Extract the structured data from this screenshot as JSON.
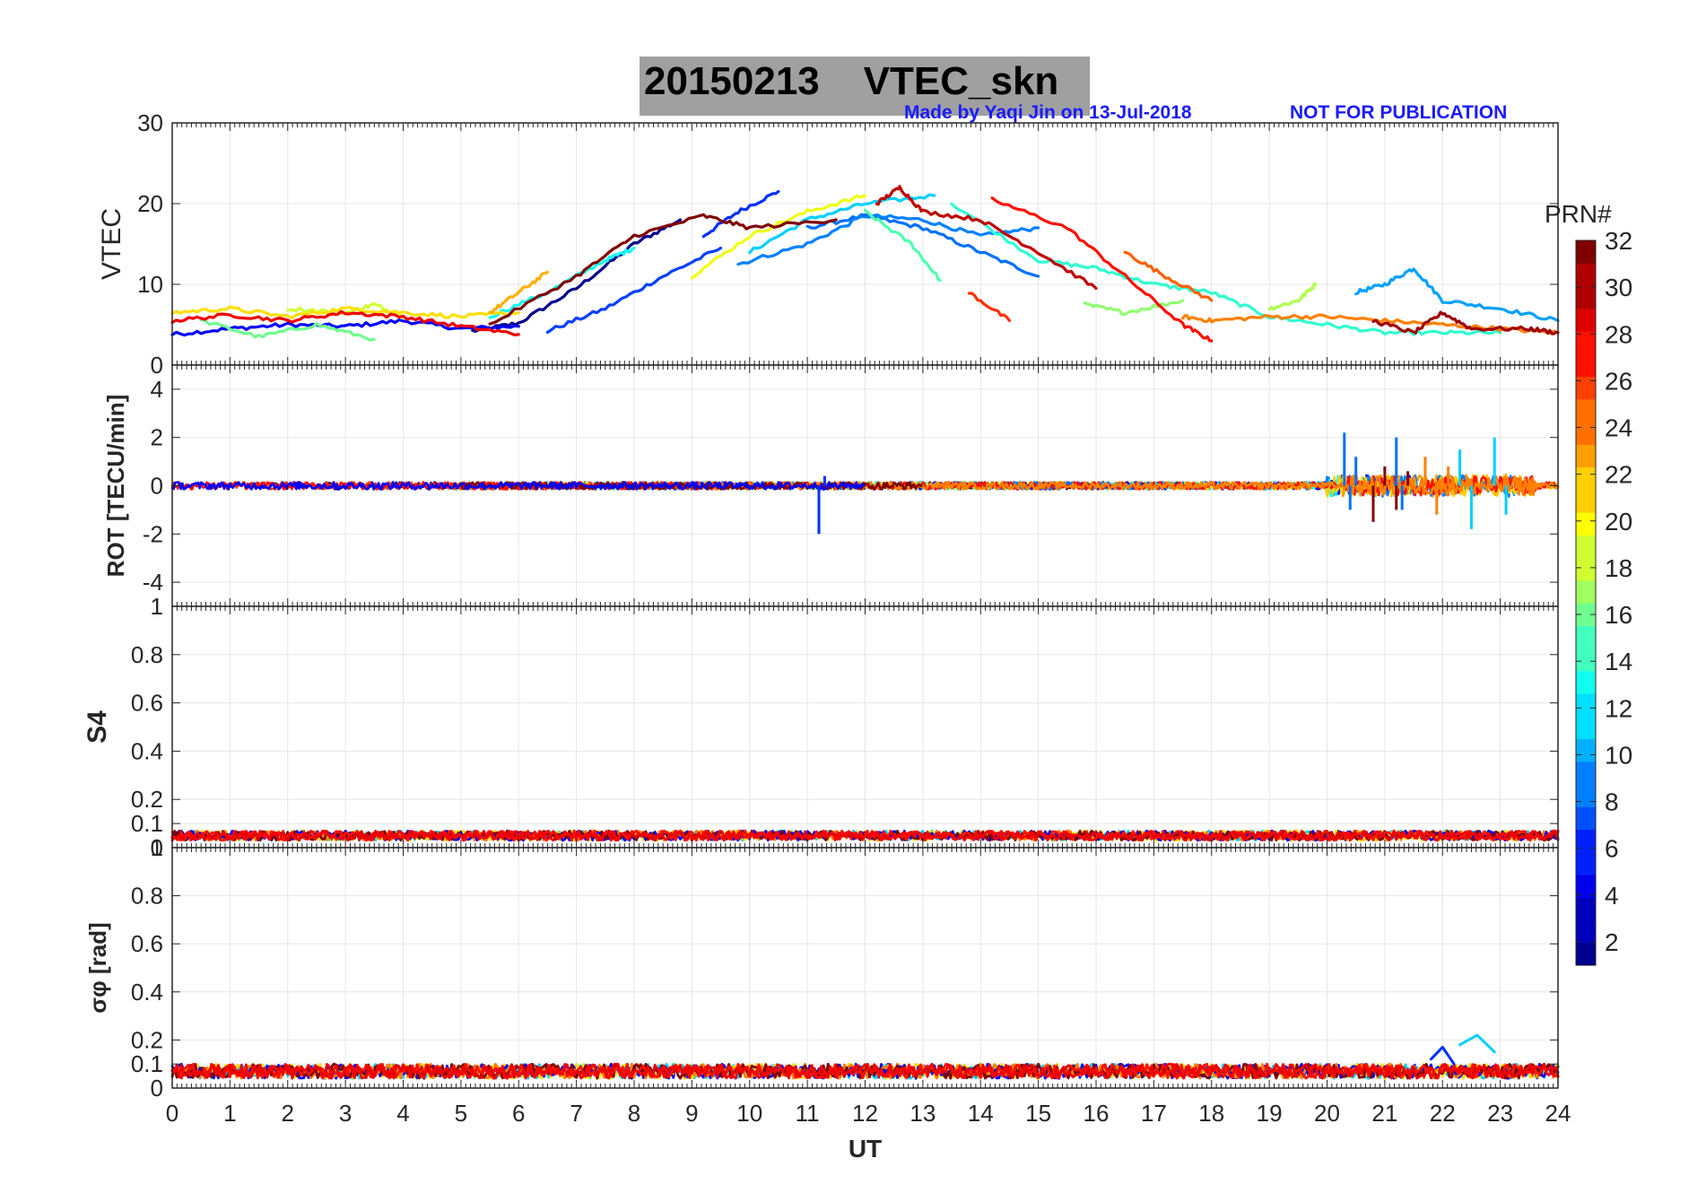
{
  "title": "20150213    VTEC_skn",
  "credit": "Made by Yaqi Jin on 13-Jul-2018",
  "notice": "NOT FOR PUBLICATION",
  "colorbar": {
    "label": "PRN#",
    "range": [
      1,
      32
    ],
    "ticks": [
      "2",
      "4",
      "6",
      "8",
      "10",
      "12",
      "14",
      "16",
      "18",
      "20",
      "22",
      "24",
      "26",
      "28",
      "30",
      "32"
    ],
    "colormap": "jet"
  },
  "chart_data": [
    {
      "type": "line",
      "panel": "vtec",
      "ylabel": "VTEC",
      "xlabel": "",
      "xlim": [
        0,
        24
      ],
      "ylim": [
        0,
        30
      ],
      "yticks": [
        "0",
        "10",
        "20",
        "30"
      ],
      "series": [
        {
          "name": "PRN 1",
          "color": "#00008f",
          "x": [
            5.2,
            6,
            7,
            8,
            8.8
          ],
          "values": [
            4.2,
            5.2,
            9.5,
            15,
            18
          ]
        },
        {
          "name": "PRN 3",
          "color": "#0000ff",
          "x": [
            0,
            1,
            2,
            3,
            4,
            5,
            6
          ],
          "values": [
            3.8,
            4.5,
            5,
            4.8,
            5.5,
            4.5,
            4.8
          ]
        },
        {
          "name": "PRN 5",
          "color": "#0030ff",
          "x": [
            9.2,
            9.8,
            10.5
          ],
          "values": [
            16,
            19,
            21.5
          ]
        },
        {
          "name": "PRN 6",
          "color": "#0040ff",
          "x": [
            6.5,
            7.5,
            8.5,
            9.5
          ],
          "values": [
            4.2,
            7,
            11,
            14.5
          ]
        },
        {
          "name": "PRN 8",
          "color": "#0070ff",
          "x": [
            11,
            12,
            13,
            14,
            15
          ],
          "values": [
            17,
            18.5,
            17,
            14,
            11
          ]
        },
        {
          "name": "PRN 9",
          "color": "#0080ff",
          "x": [
            9.8,
            11,
            12,
            13,
            14,
            15
          ],
          "values": [
            12.5,
            15,
            18.5,
            18,
            16,
            17
          ]
        },
        {
          "name": "PRN 10",
          "color": "#00a0ff",
          "x": [
            20.5,
            21,
            21.5,
            22,
            23,
            24
          ],
          "values": [
            9,
            10,
            12,
            8,
            7,
            5.5
          ]
        },
        {
          "name": "PRN 12",
          "color": "#00d0ff",
          "x": [
            10,
            11,
            12,
            13.2
          ],
          "values": [
            14,
            18,
            20,
            21
          ]
        },
        {
          "name": "PRN 13",
          "color": "#10ffef",
          "x": [
            5.5,
            6.5,
            7.5,
            8
          ],
          "values": [
            6,
            9,
            13,
            14.5
          ]
        },
        {
          "name": "PRN 14",
          "color": "#30ffcf",
          "x": [
            13.5,
            15,
            16,
            17,
            18,
            19,
            20,
            21,
            22,
            23
          ],
          "values": [
            20,
            13,
            12,
            10,
            9,
            6,
            5,
            4,
            4,
            4
          ]
        },
        {
          "name": "PRN 15",
          "color": "#50ffaf",
          "x": [
            12,
            12.8,
            13.3
          ],
          "values": [
            19,
            15,
            10.5
          ]
        },
        {
          "name": "PRN 16",
          "color": "#70ff8f",
          "x": [
            0.5,
            1.5,
            2.5,
            3.5
          ],
          "values": [
            5.5,
            3.5,
            5,
            3.2
          ]
        },
        {
          "name": "PRN 17",
          "color": "#90ff6f",
          "x": [
            15.8,
            16.5,
            17.5
          ],
          "values": [
            7.5,
            6.5,
            8
          ]
        },
        {
          "name": "PRN 18",
          "color": "#afff50",
          "x": [
            19,
            19.5,
            19.8
          ],
          "values": [
            7,
            8,
            10
          ]
        },
        {
          "name": "PRN 19",
          "color": "#cfff30",
          "x": [
            2,
            3,
            3.5,
            4
          ],
          "values": [
            7,
            6.5,
            7.5,
            6
          ]
        },
        {
          "name": "PRN 20",
          "color": "#efff10",
          "x": [
            9,
            10,
            11,
            12
          ],
          "values": [
            11,
            16,
            19,
            21
          ]
        },
        {
          "name": "PRN 21",
          "color": "#ffdf00",
          "x": [
            0,
            1,
            2,
            3,
            4,
            5,
            6
          ],
          "values": [
            6.5,
            7,
            6,
            7,
            6.5,
            6,
            6.5
          ]
        },
        {
          "name": "PRN 22",
          "color": "#ffaf00",
          "x": [
            5.5,
            6,
            6.5
          ],
          "values": [
            6.5,
            9,
            11.5
          ]
        },
        {
          "name": "PRN 24",
          "color": "#ff8000",
          "x": [
            17.5,
            18,
            19,
            20,
            21,
            22,
            23,
            24
          ],
          "values": [
            6,
            5.5,
            6,
            6,
            5.5,
            5,
            4.5,
            4
          ]
        },
        {
          "name": "PRN 25",
          "color": "#ff6000",
          "x": [
            16.5,
            17.2,
            18
          ],
          "values": [
            14,
            11,
            8
          ]
        },
        {
          "name": "PRN 27",
          "color": "#ff3000",
          "x": [
            13.8,
            14.5
          ],
          "values": [
            9,
            5.5
          ]
        },
        {
          "name": "PRN 28",
          "color": "#ff1000",
          "x": [
            14.2,
            15.5,
            16.5,
            17.5,
            18
          ],
          "values": [
            20.5,
            17,
            11,
            5,
            3
          ]
        },
        {
          "name": "PRN 29",
          "color": "#ef0000",
          "x": [
            0,
            1,
            2,
            3,
            4,
            5,
            6
          ],
          "values": [
            5.5,
            6.2,
            5.5,
            6.5,
            6,
            4.8,
            3.8
          ]
        },
        {
          "name": "PRN 30",
          "color": "#bf0000",
          "x": [
            12.2,
            12.6,
            13,
            14,
            15,
            16
          ],
          "values": [
            20,
            22,
            19,
            18,
            14,
            9.5
          ]
        },
        {
          "name": "PRN 31",
          "color": "#9f0000",
          "x": [
            20.8,
            21.5,
            22,
            22.5,
            23.5,
            24
          ],
          "values": [
            5.5,
            4,
            6.5,
            4.5,
            4.5,
            4
          ]
        },
        {
          "name": "PRN 32",
          "color": "#800000",
          "x": [
            5.5,
            7,
            8,
            9.2,
            10,
            11.5
          ],
          "values": [
            5,
            11,
            16,
            18.5,
            17,
            18
          ]
        }
      ]
    },
    {
      "type": "line",
      "panel": "rot",
      "ylabel": "ROT [TECU/min]",
      "xlabel": "",
      "xlim": [
        0,
        24
      ],
      "ylim": [
        -5,
        5
      ],
      "yticks": [
        "-4",
        "-2",
        "0",
        "2",
        "4"
      ],
      "noise_level": 0.15,
      "features": [
        {
          "name": "ROT spikes PRN 8",
          "color": "#0070ff",
          "x": [
            20.3,
            20.4,
            20.5,
            21.2,
            21.3
          ],
          "values": [
            2.2,
            -1.0,
            1.2,
            2.0,
            -1.0
          ]
        },
        {
          "name": "ROT spikes PRN 12",
          "color": "#00d0ff",
          "x": [
            22.3,
            22.5,
            22.9,
            23.1
          ],
          "values": [
            1.5,
            -1.8,
            2.0,
            -1.2
          ]
        },
        {
          "name": "ROT spikes PRN 24",
          "color": "#ff8000",
          "x": [
            21.7,
            21.9,
            22.1
          ],
          "values": [
            1.2,
            -1.2,
            0.8
          ]
        },
        {
          "name": "ROT spike PRN 5",
          "color": "#0030ff",
          "x": [
            11.2,
            11.3
          ],
          "values": [
            -2.0,
            0.4
          ]
        },
        {
          "name": "ROT burst PRN 32",
          "color": "#800000",
          "x": [
            20.8,
            21.0,
            21.2,
            21.4
          ],
          "values": [
            -1.5,
            0.8,
            -1.0,
            0.6
          ]
        }
      ]
    },
    {
      "type": "line",
      "panel": "s4",
      "ylabel": "S4",
      "xlabel": "",
      "xlim": [
        0,
        24
      ],
      "ylim": [
        0,
        1
      ],
      "yticks": [
        "0",
        "0.1",
        "0.2",
        "0.4",
        "0.6",
        "0.8",
        "1"
      ],
      "baseline": 0.05,
      "spread": 0.02
    },
    {
      "type": "line",
      "panel": "sigma_phi",
      "ylabel": "σφ [rad]",
      "xlabel": "UT",
      "xlim": [
        0,
        24
      ],
      "ylim": [
        0,
        1
      ],
      "yticks": [
        "0",
        "0.1",
        "0.2",
        "0.4",
        "0.6",
        "0.8",
        "1"
      ],
      "xticks": [
        "0",
        "1",
        "2",
        "3",
        "4",
        "5",
        "6",
        "7",
        "8",
        "9",
        "10",
        "11",
        "12",
        "13",
        "14",
        "15",
        "16",
        "17",
        "18",
        "19",
        "20",
        "21",
        "22",
        "23",
        "24"
      ],
      "baseline": 0.07,
      "spread": 0.03,
      "features": [
        {
          "name": "phase burst PRN 12",
          "color": "#00d0ff",
          "x": [
            22.3,
            22.6,
            22.9
          ],
          "values": [
            0.18,
            0.22,
            0.15
          ]
        },
        {
          "name": "phase burst PRN 5",
          "color": "#0030ff",
          "x": [
            21.8,
            22.0,
            22.2
          ],
          "values": [
            0.12,
            0.17,
            0.1
          ]
        }
      ]
    }
  ]
}
